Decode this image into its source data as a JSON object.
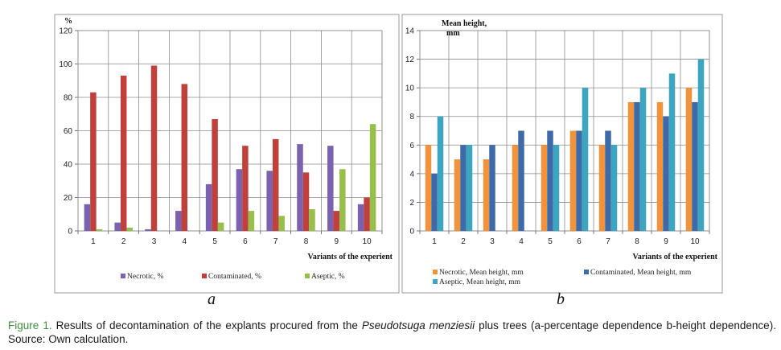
{
  "charts": [
    {
      "type": "bar",
      "panel_letter": "a",
      "ylabel": "%",
      "xlabel": "Variants of the experient",
      "categories": [
        "1",
        "2",
        "3",
        "4",
        "5",
        "6",
        "7",
        "8",
        "9",
        "10"
      ],
      "ylim": [
        0,
        120
      ],
      "yticks": [
        0,
        20,
        40,
        60,
        80,
        100,
        120
      ],
      "grid": true,
      "legend_position": "bottom",
      "series": [
        {
          "name": "Necrotic, %",
          "color": "#7b62b0",
          "values": [
            16,
            5,
            1,
            12,
            28,
            37,
            36,
            52,
            51,
            16
          ]
        },
        {
          "name": "Contaminated, %",
          "color": "#c0403b",
          "values": [
            83,
            93,
            99,
            88,
            67,
            51,
            55,
            35,
            12,
            20
          ]
        },
        {
          "name": "Aseptic, %",
          "color": "#98bf4c",
          "values": [
            1,
            2,
            0,
            0,
            5,
            12,
            9,
            13,
            37,
            64
          ]
        }
      ]
    },
    {
      "type": "bar",
      "panel_letter": "b",
      "ylabel": "Mean height, mm",
      "xlabel": "Variants of the experient",
      "categories": [
        "1",
        "2",
        "3",
        "4",
        "5",
        "6",
        "7",
        "8",
        "9",
        "10"
      ],
      "ylim": [
        0,
        14
      ],
      "yticks": [
        0,
        2,
        4,
        6,
        8,
        10,
        12,
        14
      ],
      "grid": true,
      "legend_position": "bottom",
      "series": [
        {
          "name": "Necrotic, Mean height, mm",
          "color": "#f2923a",
          "values": [
            6,
            5,
            5,
            6,
            6,
            7,
            6,
            9,
            9,
            10
          ]
        },
        {
          "name": "Contaminated, Mean height, mm",
          "color": "#3f6aa8",
          "values": [
            4,
            6,
            6,
            7,
            7,
            7,
            7,
            9,
            8,
            9
          ]
        },
        {
          "name": "Aseptic, Mean height, mm",
          "color": "#3ca6c1",
          "values": [
            8,
            6,
            0,
            0,
            6,
            10,
            6,
            10,
            11,
            12
          ]
        }
      ]
    }
  ],
  "caption": {
    "label": "Figure 1.",
    "text_before": "Results of decontamination of the explants procured from the",
    "species": "Pseudotsuga menziesii",
    "text_after": "plus trees (a-percentage dependence b-height dependence). Source: Own calculation."
  }
}
